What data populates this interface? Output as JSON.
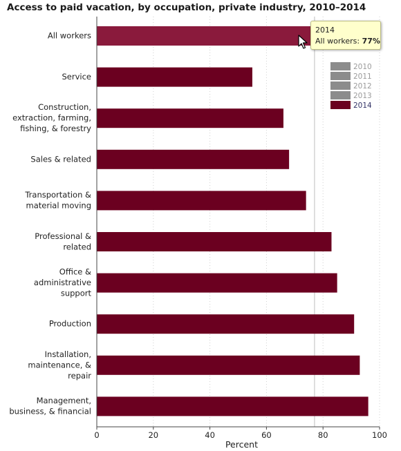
{
  "chart_data": {
    "type": "bar",
    "orientation": "horizontal",
    "title": "Access to paid vacation, by occupation, private industry, 2010–2014",
    "xlabel": "Percent",
    "ylabel": "",
    "xlim": [
      0,
      100
    ],
    "x_ticks": [
      "0",
      "20",
      "40",
      "60",
      "80",
      "100"
    ],
    "grid": "vertical dotted",
    "reference_line_value": 77,
    "categories": [
      [
        "All workers"
      ],
      [
        "Service"
      ],
      [
        "Construction,",
        "extraction, farming,",
        "fishing, & forestry"
      ],
      [
        "Sales & related"
      ],
      [
        "Transportation &",
        "material moving"
      ],
      [
        "Professional &",
        "related"
      ],
      [
        "Office &",
        "administrative",
        "support"
      ],
      [
        "Production"
      ],
      [
        "Installation,",
        "maintenance, &",
        "repair"
      ],
      [
        "Management,",
        "business, & financial"
      ]
    ],
    "series": [
      {
        "name": "2014",
        "values": [
          77,
          55,
          66,
          68,
          74,
          83,
          85,
          91,
          93,
          96
        ]
      }
    ],
    "highlight_index": 0,
    "colors": {
      "bar": "#6b0020",
      "bar_highlight": "#8a1a3c",
      "legend_inactive": "#8c8c8c",
      "refline": "#c8c8c8"
    }
  },
  "legend": {
    "placement": "top-right",
    "items": [
      {
        "label": "2010",
        "active": false
      },
      {
        "label": "2011",
        "active": false
      },
      {
        "label": "2012",
        "active": false
      },
      {
        "label": "2013",
        "active": false
      },
      {
        "label": "2014",
        "active": true
      }
    ]
  },
  "tooltip": {
    "year": "2014",
    "series_label": "All workers: ",
    "value_text": "77%"
  }
}
